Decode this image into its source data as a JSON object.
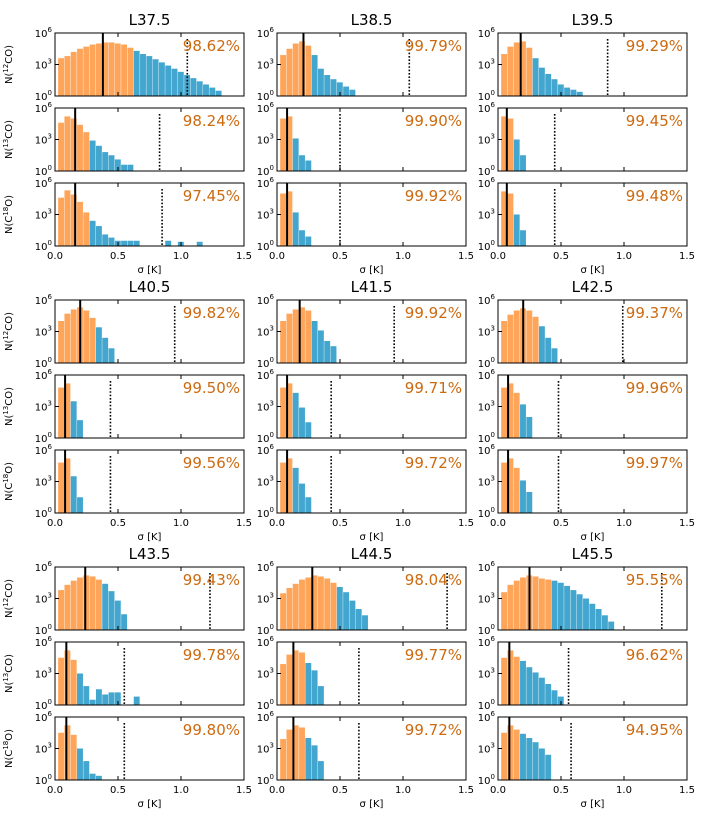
{
  "figure": {
    "xlabel": "σ [K]",
    "xticks": [
      "0.0",
      "0.5",
      "1.0",
      "1.5"
    ],
    "ytick_labels": [
      {
        "base": "10",
        "exp": "0"
      },
      {
        "base": "10",
        "exp": "3"
      },
      {
        "base": "10",
        "exp": "6"
      }
    ],
    "ylabels": [
      {
        "pre": "N(",
        "sup": "12",
        "post": "CO)"
      },
      {
        "pre": "N(",
        "sup": "13",
        "post": "CO)"
      },
      {
        "pre": "N(C",
        "sup": "18",
        "post": "O)"
      }
    ],
    "colors": {
      "below": "#ffa55a",
      "above": "#42a6cf",
      "percent_text": "#cc6a10"
    }
  },
  "chart_data": {
    "type": "histogram",
    "x_range": [
      0,
      1.5
    ],
    "y_scale": "log",
    "y_range_log10": [
      0,
      6
    ],
    "bin_width": 0.05,
    "bars_from_x": 0.025,
    "panels": [
      {
        "title": "L37.5",
        "rows": [
          {
            "tracer": "12CO",
            "pct": "98.62%",
            "median": 0.38,
            "threshold": 0.65,
            "dotted": 1.05,
            "logN": [
              3.6,
              3.8,
              4.2,
              4.5,
              4.7,
              4.9,
              5.0,
              5.1,
              5.1,
              5.0,
              4.9,
              4.6,
              4.3,
              4.0,
              3.8,
              3.5,
              3.2,
              2.9,
              2.6,
              2.3,
              2.0,
              1.7,
              1.4,
              1.1,
              0.8,
              0.5
            ]
          },
          {
            "tracer": "13CO",
            "pct": "98.24%",
            "median": 0.16,
            "threshold": 0.3,
            "dotted": 0.83,
            "logN": [
              4.6,
              5.2,
              5.0,
              4.4,
              3.7,
              2.9,
              2.4,
              1.8,
              1.5,
              1.1,
              0.6,
              0.6
            ]
          },
          {
            "tracer": "C18O",
            "pct": "97.45%",
            "median": 0.16,
            "threshold": 0.3,
            "dotted": 0.85,
            "logN": [
              4.6,
              5.3,
              4.9,
              4.2,
              3.2,
              2.4,
              1.9,
              1.1,
              0.8,
              0.5,
              0.5,
              0.5,
              0.5,
              0,
              0,
              0,
              0,
              0.5,
              0,
              0.4,
              0,
              0,
              0.4
            ]
          }
        ]
      },
      {
        "title": "L38.5",
        "rows": [
          {
            "tracer": "12CO",
            "pct": "99.79%",
            "median": 0.21,
            "threshold": 0.3,
            "dotted": 1.05,
            "logN": [
              3.9,
              4.5,
              5.0,
              5.2,
              4.8,
              3.9,
              2.6,
              2.0,
              1.6,
              1.3,
              0.9,
              0.6
            ]
          },
          {
            "tracer": "13CO",
            "pct": "99.90%",
            "median": 0.08,
            "threshold": 0.12,
            "dotted": 0.5,
            "logN": [
              5.0,
              5.2,
              3.1,
              1.5,
              1.0
            ]
          },
          {
            "tracer": "C18O",
            "pct": "99.92%",
            "median": 0.08,
            "threshold": 0.12,
            "dotted": 0.5,
            "logN": [
              5.0,
              5.2,
              3.2,
              1.5,
              0.9
            ]
          }
        ]
      },
      {
        "title": "L39.5",
        "rows": [
          {
            "tracer": "12CO",
            "pct": "99.29%",
            "median": 0.18,
            "threshold": 0.3,
            "dotted": 0.87,
            "logN": [
              4.0,
              4.7,
              5.1,
              5.2,
              4.6,
              3.6,
              2.7,
              2.1,
              1.6,
              1.1,
              0.8,
              0.6,
              0.4
            ]
          },
          {
            "tracer": "13CO",
            "pct": "99.45%",
            "median": 0.07,
            "threshold": 0.12,
            "dotted": 0.45,
            "logN": [
              5.2,
              5.0,
              3.0,
              1.5
            ]
          },
          {
            "tracer": "C18O",
            "pct": "99.48%",
            "median": 0.07,
            "threshold": 0.12,
            "dotted": 0.45,
            "logN": [
              5.2,
              5.0,
              3.0,
              1.5
            ]
          }
        ]
      },
      {
        "title": "L40.5",
        "rows": [
          {
            "tracer": "12CO",
            "pct": "99.82%",
            "median": 0.2,
            "threshold": 0.35,
            "dotted": 0.95,
            "logN": [
              4.0,
              4.7,
              5.1,
              5.3,
              5.0,
              4.3,
              3.4,
              2.4,
              1.4
            ]
          },
          {
            "tracer": "13CO",
            "pct": "99.50%",
            "median": 0.08,
            "threshold": 0.12,
            "dotted": 0.44,
            "logN": [
              4.8,
              5.2,
              3.5,
              1.7
            ]
          },
          {
            "tracer": "C18O",
            "pct": "99.56%",
            "median": 0.08,
            "threshold": 0.12,
            "dotted": 0.44,
            "logN": [
              4.8,
              5.2,
              3.5,
              1.5
            ]
          }
        ]
      },
      {
        "title": "L41.5",
        "rows": [
          {
            "tracer": "12CO",
            "pct": "99.92%",
            "median": 0.18,
            "threshold": 0.3,
            "dotted": 0.93,
            "logN": [
              4.0,
              4.7,
              5.1,
              5.3,
              5.0,
              4.0,
              3.1,
              2.1,
              1.6
            ]
          },
          {
            "tracer": "13CO",
            "pct": "99.71%",
            "median": 0.08,
            "threshold": 0.15,
            "dotted": 0.43,
            "logN": [
              4.8,
              5.2,
              4.3,
              2.9,
              1.5
            ]
          },
          {
            "tracer": "C18O",
            "pct": "99.72%",
            "median": 0.08,
            "threshold": 0.15,
            "dotted": 0.43,
            "logN": [
              4.8,
              5.2,
              4.3,
              2.8,
              1.5
            ]
          }
        ]
      },
      {
        "title": "L42.5",
        "rows": [
          {
            "tracer": "12CO",
            "pct": "99.37%",
            "median": 0.2,
            "threshold": 0.35,
            "dotted": 0.99,
            "logN": [
              4.0,
              4.6,
              5.0,
              5.2,
              5.0,
              4.4,
              3.5,
              2.4,
              1.4
            ]
          },
          {
            "tracer": "13CO",
            "pct": "99.96%",
            "median": 0.08,
            "threshold": 0.17,
            "dotted": 0.48,
            "logN": [
              4.8,
              5.2,
              4.3,
              3.2,
              2.0
            ]
          },
          {
            "tracer": "C18O",
            "pct": "99.97%",
            "median": 0.08,
            "threshold": 0.17,
            "dotted": 0.48,
            "logN": [
              4.8,
              5.2,
              4.3,
              3.1,
              2.0
            ]
          }
        ]
      },
      {
        "title": "L43.5",
        "rows": [
          {
            "tracer": "12CO",
            "pct": "99.43%",
            "median": 0.24,
            "threshold": 0.4,
            "dotted": 1.23,
            "logN": [
              3.8,
              4.3,
              4.7,
              5.0,
              5.2,
              5.1,
              4.8,
              4.4,
              3.7,
              2.8,
              1.5
            ]
          },
          {
            "tracer": "13CO",
            "pct": "99.78%",
            "median": 0.09,
            "threshold": 0.18,
            "dotted": 0.55,
            "logN": [
              4.5,
              5.2,
              4.3,
              3.0,
              1.8,
              0.5,
              1.5,
              1.0,
              1.2,
              1.2,
              0,
              0,
              0.8
            ]
          },
          {
            "tracer": "C18O",
            "pct": "99.80%",
            "median": 0.09,
            "threshold": 0.18,
            "dotted": 0.55,
            "logN": [
              4.5,
              5.2,
              4.3,
              3.0,
              1.8,
              0.6,
              0.4
            ]
          }
        ]
      },
      {
        "title": "L44.5",
        "rows": [
          {
            "tracer": "12CO",
            "pct": "98.04%",
            "median": 0.28,
            "threshold": 0.48,
            "dotted": 1.35,
            "logN": [
              3.5,
              4.0,
              4.4,
              4.8,
              5.0,
              5.2,
              5.1,
              4.9,
              4.5,
              4.1,
              3.6,
              2.8,
              2.0,
              1.4
            ]
          },
          {
            "tracer": "13CO",
            "pct": "99.77%",
            "median": 0.13,
            "threshold": 0.22,
            "dotted": 0.65,
            "logN": [
              3.9,
              4.8,
              5.2,
              5.0,
              4.0,
              3.3,
              1.8
            ]
          },
          {
            "tracer": "C18O",
            "pct": "99.72%",
            "median": 0.13,
            "threshold": 0.22,
            "dotted": 0.65,
            "logN": [
              3.9,
              4.8,
              5.2,
              5.0,
              4.0,
              3.3,
              1.8
            ]
          }
        ]
      },
      {
        "title": "L45.5",
        "rows": [
          {
            "tracer": "12CO",
            "pct": "95.55%",
            "median": 0.25,
            "threshold": 0.42,
            "dotted": 1.3,
            "logN": [
              3.6,
              4.3,
              4.7,
              5.0,
              5.2,
              5.1,
              4.9,
              4.8,
              4.7,
              4.5,
              4.2,
              3.8,
              3.4,
              3.0,
              2.5,
              2.0,
              1.4,
              0.8
            ]
          },
          {
            "tracer": "13CO",
            "pct": "96.62%",
            "median": 0.09,
            "threshold": 0.18,
            "dotted": 0.56,
            "logN": [
              4.5,
              5.2,
              4.6,
              4.2,
              3.6,
              3.1,
              2.6,
              2.0,
              1.4,
              0.8
            ]
          },
          {
            "tracer": "C18O",
            "pct": "94.95%",
            "median": 0.09,
            "threshold": 0.2,
            "dotted": 0.58,
            "logN": [
              4.5,
              5.2,
              4.8,
              4.4,
              4.0,
              3.6,
              3.0,
              2.4
            ]
          }
        ]
      }
    ]
  }
}
